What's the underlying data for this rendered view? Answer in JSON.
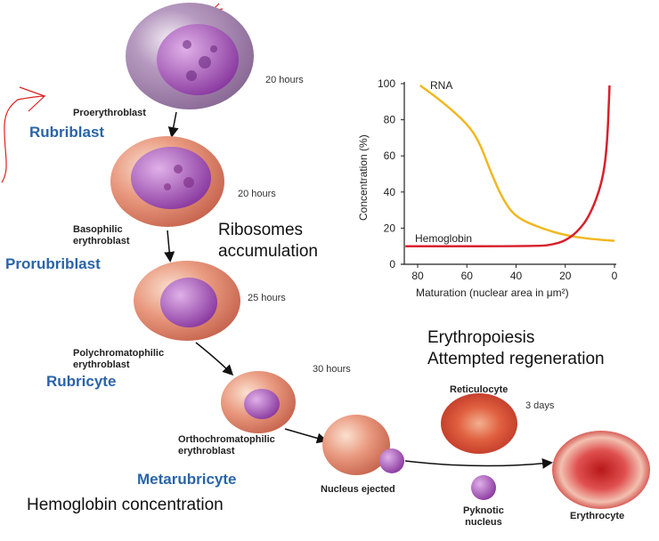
{
  "stages": [
    {
      "name": "Proerythroblast",
      "duration": "20 hours",
      "vet_name": "Rubriblast"
    },
    {
      "name": "Basophilic erythroblast",
      "duration": "20 hours",
      "vet_name": "Prorubriblast"
    },
    {
      "name": "Polychromatophilic erythroblast",
      "duration": "25 hours",
      "vet_name": "Rubricyte"
    },
    {
      "name": "Orthochromatophilic erythroblast",
      "duration": "30 hours",
      "vet_name": "Metarubricyte"
    },
    {
      "name": "Nucleus ejected"
    },
    {
      "name": "Reticulocyte",
      "duration": "3 days"
    },
    {
      "name": "Erythrocyte"
    },
    {
      "name": "Pyknotic nucleus"
    }
  ],
  "labels": {
    "basophilic_1": "Basophilic",
    "basophilic_2": "erythroblast",
    "poly_1": "Polychromatophilic",
    "poly_2": "erythroblast",
    "ortho_1": "Orthochromatophilic",
    "ortho_2": "erythroblast",
    "pyk_1": "Pyknotic",
    "pyk_2": "nucleus"
  },
  "notes": {
    "ribosomes_1": "Ribosomes",
    "ribosomes_2": "accumulation",
    "erythropoiesis": "Erythropoiesis",
    "regeneration": "Attempted regeneration",
    "hemoglobin": "Hemoglobin concentration"
  },
  "colors": {
    "rna": "#f0b820",
    "hemoglobin": "#d8202c",
    "vet_label": "#2a64a8",
    "annotation": "#e02020"
  },
  "chart_data": {
    "type": "line",
    "xlabel": "Maturation (nuclear area in μm²)",
    "ylabel": "Concentration (%)",
    "xlim": [
      85,
      0
    ],
    "ylim": [
      0,
      100
    ],
    "xticks": [
      80,
      60,
      40,
      20,
      0
    ],
    "yticks": [
      0,
      20,
      40,
      60,
      80,
      100
    ],
    "series": [
      {
        "name": "RNA",
        "x": [
          79,
          70,
          60,
          55,
          50,
          45,
          40,
          30,
          20,
          10,
          0
        ],
        "y": [
          99,
          90,
          78,
          68,
          50,
          35,
          26,
          20,
          16,
          14,
          13
        ]
      },
      {
        "name": "Hemoglobin",
        "x": [
          85,
          30,
          25,
          20,
          15,
          10,
          5,
          3,
          2
        ],
        "y": [
          10,
          10,
          11,
          13,
          18,
          27,
          45,
          65,
          99
        ]
      }
    ]
  }
}
